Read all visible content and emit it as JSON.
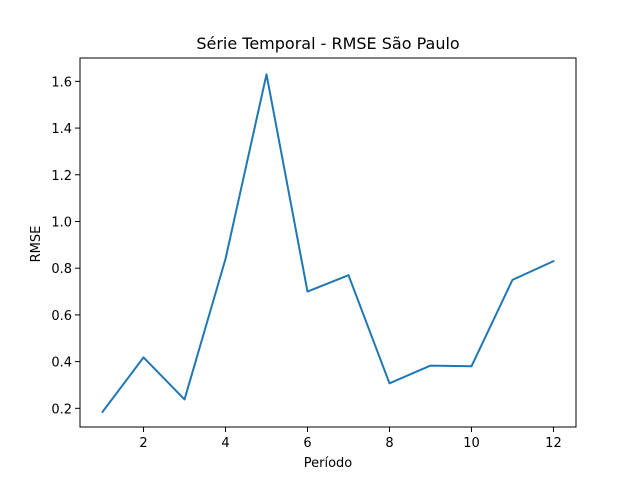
{
  "chart_data": {
    "type": "line",
    "title": "Série Temporal - RMSE São Paulo",
    "xlabel": "Período",
    "ylabel": "RMSE",
    "xlim": [
      0.45,
      12.55
    ],
    "ylim": [
      0.12,
      1.7
    ],
    "xticks": [
      2,
      4,
      6,
      8,
      10,
      12
    ],
    "yticks": [
      0.2,
      0.4,
      0.6,
      0.8,
      1.0,
      1.2,
      1.4,
      1.6
    ],
    "ytick_labels": [
      "0.2",
      "0.4",
      "0.6",
      "0.8",
      "1.0",
      "1.2",
      "1.4",
      "1.6"
    ],
    "grid": false,
    "series": [
      {
        "color": "#1f77b4",
        "x": [
          1,
          2,
          3,
          4,
          5,
          6,
          7,
          8,
          9,
          10,
          11,
          12
        ],
        "y": [
          0.185,
          0.418,
          0.238,
          0.84,
          1.63,
          0.7,
          0.77,
          0.307,
          0.383,
          0.38,
          0.75,
          0.83
        ]
      }
    ]
  }
}
